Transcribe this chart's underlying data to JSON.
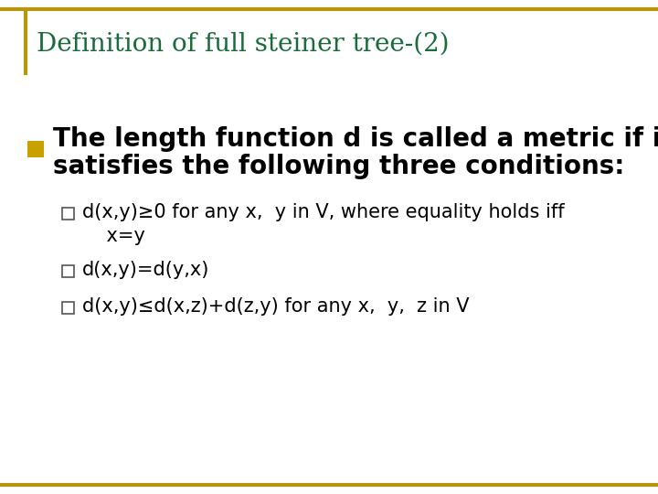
{
  "title": "Definition of full steiner tree-(2)",
  "title_color": "#1a6b3c",
  "title_fontsize": 20,
  "background_color": "#ffffff",
  "border_color": "#b8960c",
  "bullet_color": "#c8a000",
  "bullet_text_line1": "The length function d is called a metric if it",
  "bullet_text_line2": "satisfies the following three conditions:",
  "bullet_fontsize": 20,
  "sub_bullets": [
    "d(x,y)≥0 for any x,  y in V, where equality holds iff\n    x=y",
    "d(x,y)=d(y,x)",
    "d(x,y)≤d(x,z)+d(z,y) for any x,  y,  z in V"
  ],
  "sub_bullet_fontsize": 15
}
